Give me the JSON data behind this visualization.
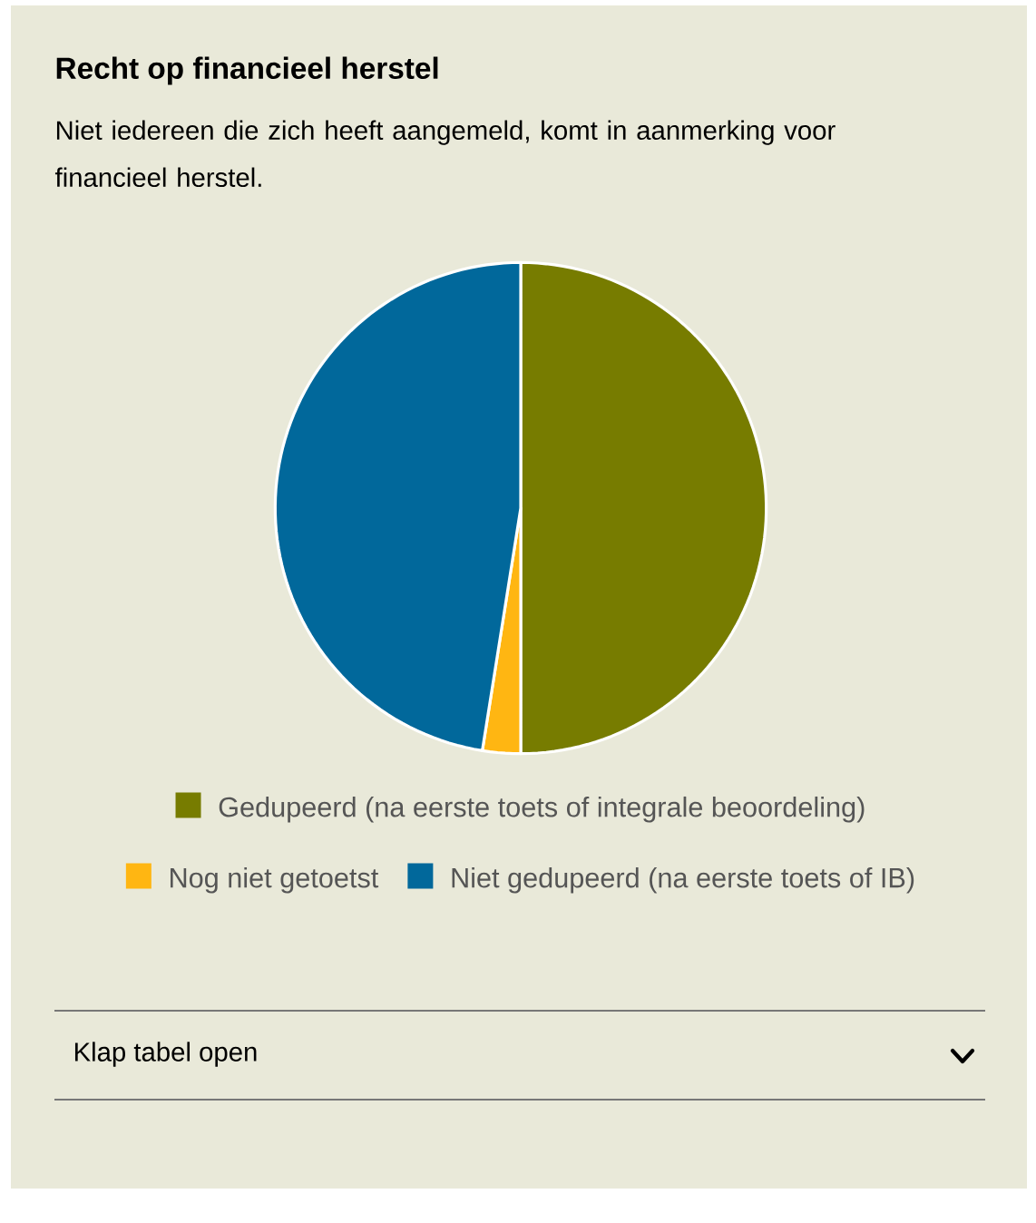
{
  "chart_data": {
    "type": "pie",
    "title": "Recht op financieel herstel",
    "subtitle": "Niet iedereen die zich heeft aangemeld, komt in aanmerking voor financieel herstel.",
    "categories": [
      "Gedupeerd (na eerste toets of integrale beoordeling)",
      "Nog niet getoetst",
      "Niet gedupeerd (na eerste toets of IB)"
    ],
    "values": [
      50,
      2.5,
      47.5
    ],
    "colors": [
      "#777c00",
      "#ffb612",
      "#01689b"
    ],
    "legend": "bottom",
    "annotations": [
      "Klap tabel open"
    ]
  }
}
